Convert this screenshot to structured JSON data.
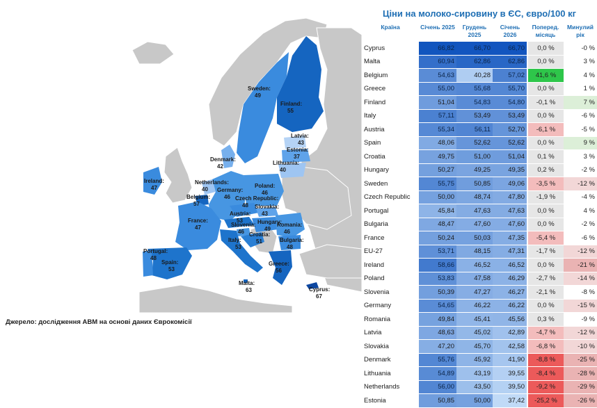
{
  "title": "Ціни на молоко-сировину в ЄС, євро/100 кг",
  "source": "Джерело: дослідження АВМ на основі даних Єврокомісії",
  "colors": {
    "title": "#1f6fb4",
    "up_strong": "#2ec64a",
    "down_mid": "#f3bcbc",
    "down_strong": "#ec5a5a",
    "neutral": "#e6e6e6",
    "year_down": "#f2d7d7",
    "year_up": "#dcefd8"
  },
  "chart_data": [
    {
      "type": "table",
      "columns": [
        "Країна",
        "Січень 2025",
        "Грудень 2025",
        "Січень 2026",
        "Поперед. місяць",
        "Минулий рік"
      ],
      "rows": [
        {
          "country": "Cyprus",
          "jan25": "66,82",
          "dec25": "66,70",
          "jan26": "66,70",
          "mom": "0,0 %",
          "yoy": "-0 %",
          "mom_v": 0.0,
          "yoy_v": 0
        },
        {
          "country": "Malta",
          "jan25": "60,94",
          "dec25": "62,86",
          "jan26": "62,86",
          "mom": "0,0 %",
          "yoy": "3 %",
          "mom_v": 0.0,
          "yoy_v": 3
        },
        {
          "country": "Belgium",
          "jan25": "54,63",
          "dec25": "40,28",
          "jan26": "57,02",
          "mom": "41,6 %",
          "yoy": "4 %",
          "mom_v": 41.6,
          "yoy_v": 4
        },
        {
          "country": "Greece",
          "jan25": "55,00",
          "dec25": "55,68",
          "jan26": "55,70",
          "mom": "0,0 %",
          "yoy": "1 %",
          "mom_v": 0.0,
          "yoy_v": 1
        },
        {
          "country": "Finland",
          "jan25": "51,04",
          "dec25": "54,83",
          "jan26": "54,80",
          "mom": "-0,1 %",
          "yoy": "7 %",
          "mom_v": -0.1,
          "yoy_v": 7
        },
        {
          "country": "Italy",
          "jan25": "57,11",
          "dec25": "53,49",
          "jan26": "53,49",
          "mom": "0,0 %",
          "yoy": "-6 %",
          "mom_v": 0.0,
          "yoy_v": -6
        },
        {
          "country": "Austria",
          "jan25": "55,34",
          "dec25": "56,11",
          "jan26": "52,70",
          "mom": "-6,1 %",
          "yoy": "-5 %",
          "mom_v": -6.1,
          "yoy_v": -5
        },
        {
          "country": "Spain",
          "jan25": "48,06",
          "dec25": "52,62",
          "jan26": "52,62",
          "mom": "0,0 %",
          "yoy": "9 %",
          "mom_v": 0.0,
          "yoy_v": 9
        },
        {
          "country": "Croatia",
          "jan25": "49,75",
          "dec25": "51,00",
          "jan26": "51,04",
          "mom": "0,1 %",
          "yoy": "3 %",
          "mom_v": 0.1,
          "yoy_v": 3
        },
        {
          "country": "Hungary",
          "jan25": "50,27",
          "dec25": "49,25",
          "jan26": "49,35",
          "mom": "0,2 %",
          "yoy": "-2 %",
          "mom_v": 0.2,
          "yoy_v": -2
        },
        {
          "country": "Sweden",
          "jan25": "55,75",
          "dec25": "50,85",
          "jan26": "49,06",
          "mom": "-3,5 %",
          "yoy": "-12 %",
          "mom_v": -3.5,
          "yoy_v": -12
        },
        {
          "country": "Czech Republic",
          "jan25": "50,00",
          "dec25": "48,74",
          "jan26": "47,80",
          "mom": "-1,9 %",
          "yoy": "-4 %",
          "mom_v": -1.9,
          "yoy_v": -4
        },
        {
          "country": "Portugal",
          "jan25": "45,84",
          "dec25": "47,63",
          "jan26": "47,63",
          "mom": "0,0 %",
          "yoy": "4 %",
          "mom_v": 0.0,
          "yoy_v": 4
        },
        {
          "country": "Bulgaria",
          "jan25": "48,47",
          "dec25": "47,60",
          "jan26": "47,60",
          "mom": "0,0 %",
          "yoy": "-2 %",
          "mom_v": 0.0,
          "yoy_v": -2
        },
        {
          "country": "France",
          "jan25": "50,24",
          "dec25": "50,03",
          "jan26": "47,35",
          "mom": "-5,4 %",
          "yoy": "-6 %",
          "mom_v": -5.4,
          "yoy_v": -6
        },
        {
          "country": "EU-27",
          "jan25": "53,71",
          "dec25": "48,15",
          "jan26": "47,31",
          "mom": "-1,7 %",
          "yoy": "-12 %",
          "mom_v": -1.7,
          "yoy_v": -12
        },
        {
          "country": "Ireland",
          "jan25": "58,66",
          "dec25": "46,52",
          "jan26": "46,52",
          "mom": "0,0 %",
          "yoy": "-21 %",
          "mom_v": 0.0,
          "yoy_v": -21
        },
        {
          "country": "Poland",
          "jan25": "53,83",
          "dec25": "47,58",
          "jan26": "46,29",
          "mom": "-2,7 %",
          "yoy": "-14 %",
          "mom_v": -2.7,
          "yoy_v": -14
        },
        {
          "country": "Slovenia",
          "jan25": "50,39",
          "dec25": "47,27",
          "jan26": "46,27",
          "mom": "-2,1 %",
          "yoy": "-8 %",
          "mom_v": -2.1,
          "yoy_v": -8
        },
        {
          "country": "Germany",
          "jan25": "54,65",
          "dec25": "46,22",
          "jan26": "46,22",
          "mom": "0,0 %",
          "yoy": "-15 %",
          "mom_v": 0.0,
          "yoy_v": -15
        },
        {
          "country": "Romania",
          "jan25": "49,84",
          "dec25": "45,41",
          "jan26": "45,56",
          "mom": "0,3 %",
          "yoy": "-9 %",
          "mom_v": 0.3,
          "yoy_v": -9
        },
        {
          "country": "Latvia",
          "jan25": "48,63",
          "dec25": "45,02",
          "jan26": "42,89",
          "mom": "-4,7 %",
          "yoy": "-12 %",
          "mom_v": -4.7,
          "yoy_v": -12
        },
        {
          "country": "Slovakia",
          "jan25": "47,20",
          "dec25": "45,70",
          "jan26": "42,58",
          "mom": "-6,8 %",
          "yoy": "-10 %",
          "mom_v": -6.8,
          "yoy_v": -10
        },
        {
          "country": "Denmark",
          "jan25": "55,76",
          "dec25": "45,92",
          "jan26": "41,90",
          "mom": "-8,8 %",
          "yoy": "-25 %",
          "mom_v": -8.8,
          "yoy_v": -25
        },
        {
          "country": "Lithuania",
          "jan25": "54,89",
          "dec25": "43,19",
          "jan26": "39,55",
          "mom": "-8,4 %",
          "yoy": "-28 %",
          "mom_v": -8.4,
          "yoy_v": -28
        },
        {
          "country": "Netherlands",
          "jan25": "56,00",
          "dec25": "43,50",
          "jan26": "39,50",
          "mom": "-9,2 %",
          "yoy": "-29 %",
          "mom_v": -9.2,
          "yoy_v": -29
        },
        {
          "country": "Estonia",
          "jan25": "50,85",
          "dec25": "50,00",
          "jan26": "37,42",
          "mom": "-25,2 %",
          "yoy": "-26 %",
          "mom_v": -25.2,
          "yoy_v": -26
        }
      ]
    },
    {
      "type": "heatmap",
      "map_labels": [
        {
          "name": "Sweden:",
          "value": "49"
        },
        {
          "name": "Finland:",
          "value": "55"
        },
        {
          "name": "Latvia:",
          "value": "43"
        },
        {
          "name": "Estonia:",
          "value": "37"
        },
        {
          "name": "Lithuania:",
          "value": "40"
        },
        {
          "name": "Denmark:",
          "value": "42"
        },
        {
          "name": "Ireland:",
          "value": "47"
        },
        {
          "name": "Netherlands:",
          "value": "40"
        },
        {
          "name": "Germany:",
          "value": "46"
        },
        {
          "name": "Poland:",
          "value": "46"
        },
        {
          "name": "Belgium:",
          "value": "57"
        },
        {
          "name": "Czech Republic:",
          "value": "48"
        },
        {
          "name": "Slovakia:",
          "value": "43"
        },
        {
          "name": "France:",
          "value": "47"
        },
        {
          "name": "Austria:",
          "value": "53"
        },
        {
          "name": "Hungary:",
          "value": "49"
        },
        {
          "name": "Slovenia:",
          "value": "46"
        },
        {
          "name": "Romania:",
          "value": "46"
        },
        {
          "name": "Croatia:",
          "value": "51"
        },
        {
          "name": "Italy:",
          "value": "53"
        },
        {
          "name": "Bulgaria:",
          "value": "48"
        },
        {
          "name": "Portugal:",
          "value": "48"
        },
        {
          "name": "Spain:",
          "value": "53"
        },
        {
          "name": "Greece:",
          "value": "56"
        },
        {
          "name": "Malta:",
          "value": "63"
        },
        {
          "name": "Cyprus:",
          "value": "67"
        }
      ]
    }
  ]
}
